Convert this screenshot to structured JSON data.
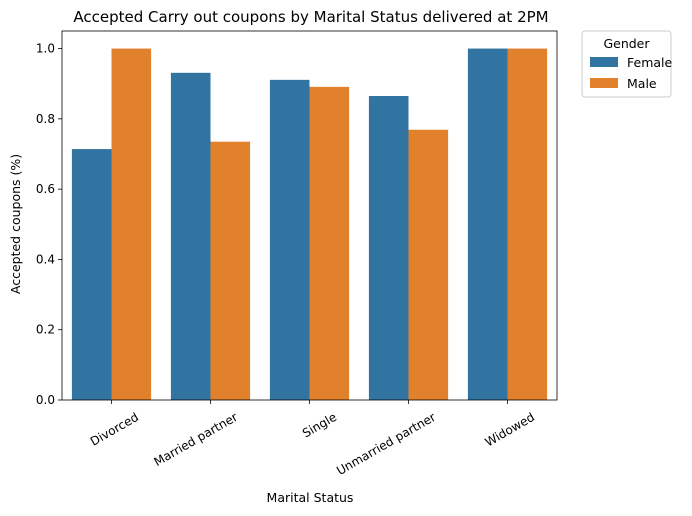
{
  "chart_data": {
    "type": "bar",
    "title": "Accepted Carry out coupons by Marital Status delivered at 2PM",
    "xlabel": "Marital Status",
    "ylabel": "Accepted coupons (%)",
    "categories": [
      "Divorced",
      "Married partner",
      "Single",
      "Unmarried partner",
      "Widowed"
    ],
    "series": [
      {
        "name": "Female",
        "color": "#3274a1",
        "values": [
          0.714,
          0.931,
          0.911,
          0.865,
          1.0
        ]
      },
      {
        "name": "Male",
        "color": "#e1812c",
        "values": [
          1.0,
          0.735,
          0.891,
          0.769,
          1.0
        ]
      }
    ],
    "ylim": [
      0,
      1.05
    ],
    "yticks": [
      "0.0",
      "0.2",
      "0.4",
      "0.6",
      "0.8",
      "1.0"
    ],
    "legend": {
      "title": "Gender",
      "placement": "outside-top-right"
    },
    "grid": false
  }
}
